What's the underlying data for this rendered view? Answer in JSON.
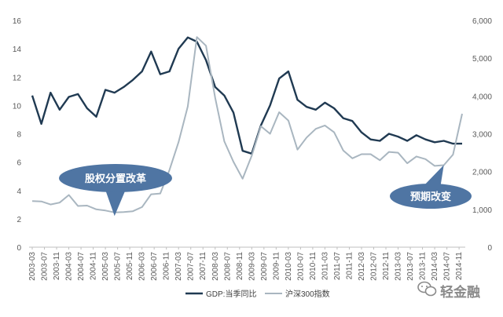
{
  "chart_data": {
    "type": "line",
    "title": "",
    "categories": [
      "2003-03",
      "2003-07",
      "2003-11",
      "2004-03",
      "2004-07",
      "2004-11",
      "2005-03",
      "2005-07",
      "2005-11",
      "2006-03",
      "2006-07",
      "2006-11",
      "2007-03",
      "2007-07",
      "2007-11",
      "2008-03",
      "2008-07",
      "2008-11",
      "2009-03",
      "2009-07",
      "2009-11",
      "2010-03",
      "2010-07",
      "2010-11",
      "2011-03",
      "2011-07",
      "2011-11",
      "2012-03",
      "2012-07",
      "2012-11",
      "2013-03",
      "2013-07",
      "2013-11",
      "2014-03",
      "2014-07",
      "2014-11"
    ],
    "left_axis": {
      "ylim": [
        0,
        16
      ],
      "ticks": [
        "0",
        "2",
        "4",
        "6",
        "8",
        "10",
        "12",
        "14",
        "16"
      ]
    },
    "right_axis": {
      "ylim": [
        0,
        6000
      ],
      "ticks": [
        "0",
        "1,000",
        "2,000",
        "3,000",
        "4,000",
        "5,000",
        "6,000"
      ]
    },
    "series": [
      {
        "name": "GDP:当季同比",
        "axis": "left",
        "color": "#203a52",
        "x": [
          "2003-03",
          "2003-06",
          "2003-09",
          "2003-12",
          "2004-03",
          "2004-06",
          "2004-09",
          "2004-12",
          "2005-03",
          "2005-06",
          "2005-09",
          "2005-12",
          "2006-03",
          "2006-06",
          "2006-09",
          "2006-12",
          "2007-03",
          "2007-06",
          "2007-09",
          "2007-12",
          "2008-03",
          "2008-06",
          "2008-09",
          "2008-12",
          "2009-03",
          "2009-06",
          "2009-09",
          "2009-12",
          "2010-03",
          "2010-06",
          "2010-09",
          "2010-12",
          "2011-03",
          "2011-06",
          "2011-09",
          "2011-12",
          "2012-03",
          "2012-06",
          "2012-09",
          "2012-12",
          "2013-03",
          "2013-06",
          "2013-09",
          "2013-12",
          "2014-03",
          "2014-06",
          "2014-09",
          "2014-12"
        ],
        "values": [
          10.7,
          8.7,
          10.9,
          9.7,
          10.6,
          10.8,
          9.8,
          9.2,
          11.1,
          10.9,
          11.3,
          11.8,
          12.4,
          13.8,
          12.2,
          12.4,
          14.0,
          14.8,
          14.5,
          13.2,
          11.3,
          10.7,
          9.5,
          6.8,
          6.6,
          8.6,
          10.0,
          11.9,
          12.4,
          10.4,
          9.9,
          9.7,
          10.2,
          9.8,
          9.1,
          8.9,
          8.1,
          7.6,
          7.5,
          8.0,
          7.8,
          7.5,
          7.9,
          7.6,
          7.4,
          7.5,
          7.3,
          7.3
        ]
      },
      {
        "name": "沪深300指数",
        "axis": "right",
        "color": "#a9b6c0",
        "x": [
          "2003-03",
          "2003-06",
          "2003-09",
          "2003-12",
          "2004-03",
          "2004-06",
          "2004-09",
          "2004-12",
          "2005-03",
          "2005-06",
          "2005-09",
          "2005-12",
          "2006-03",
          "2006-06",
          "2006-09",
          "2006-12",
          "2007-03",
          "2007-06",
          "2007-09",
          "2007-12",
          "2008-03",
          "2008-06",
          "2008-09",
          "2008-12",
          "2009-03",
          "2009-06",
          "2009-09",
          "2009-12",
          "2010-03",
          "2010-06",
          "2010-09",
          "2010-12",
          "2011-03",
          "2011-06",
          "2011-09",
          "2011-12",
          "2012-03",
          "2012-06",
          "2012-09",
          "2012-12",
          "2013-03",
          "2013-06",
          "2013-09",
          "2013-12",
          "2014-03",
          "2014-06",
          "2014-09",
          "2014-12"
        ],
        "values": [
          1220,
          1210,
          1130,
          1180,
          1380,
          1090,
          1100,
          1000,
          970,
          920,
          930,
          950,
          1060,
          1400,
          1420,
          2040,
          2780,
          3720,
          5560,
          5330,
          3950,
          2800,
          2260,
          1810,
          2420,
          3200,
          3000,
          3570,
          3350,
          2580,
          2900,
          3130,
          3220,
          3040,
          2560,
          2350,
          2460,
          2460,
          2300,
          2520,
          2500,
          2220,
          2400,
          2330,
          2150,
          2170,
          2450,
          3530
        ]
      }
    ],
    "annotations": [
      {
        "text": "股权分置改革",
        "x": "2005-06",
        "axis": "left",
        "y": 2.2
      },
      {
        "text": "预期改变",
        "x": "2014-06",
        "axis": "left",
        "y": 5.8
      }
    ],
    "legend_position": "bottom",
    "grid": false
  },
  "watermark_text": "轻金融"
}
